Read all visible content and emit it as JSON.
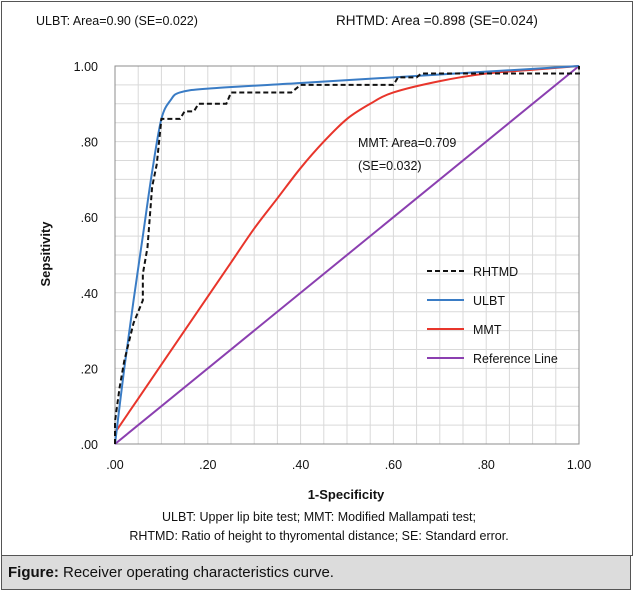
{
  "chart_data": {
    "type": "line",
    "xlabel": "1-Specificity",
    "ylabel": "Sepsitivity",
    "xlim": [
      0,
      1
    ],
    "ylim": [
      0,
      1
    ],
    "x_ticks": [
      ".00",
      ".20",
      ".40",
      ".60",
      ".80",
      "1.00"
    ],
    "y_ticks": [
      ".00",
      ".20",
      ".40",
      ".60",
      ".80",
      "1.00"
    ],
    "grid": true,
    "legend_position": "bottom-right",
    "annotations": {
      "ulbt": "ULBT: Area=0.90 (SE=0.022)",
      "rhtmd": "RHTMD: Area =0.898 (SE=0.024)",
      "mmt_line1": "MMT: Area=0.709",
      "mmt_line2": "(SE=0.032)"
    },
    "series": [
      {
        "name": "RHTMD",
        "color": "#111111",
        "dash": "dashed",
        "points": [
          [
            0,
            0
          ],
          [
            0,
            0.06
          ],
          [
            0.01,
            0.15
          ],
          [
            0.02,
            0.22
          ],
          [
            0.03,
            0.27
          ],
          [
            0.04,
            0.32
          ],
          [
            0.05,
            0.35
          ],
          [
            0.06,
            0.38
          ],
          [
            0.06,
            0.45
          ],
          [
            0.07,
            0.52
          ],
          [
            0.075,
            0.6
          ],
          [
            0.08,
            0.68
          ],
          [
            0.09,
            0.74
          ],
          [
            0.095,
            0.8
          ],
          [
            0.1,
            0.86
          ],
          [
            0.14,
            0.86
          ],
          [
            0.15,
            0.88
          ],
          [
            0.17,
            0.88
          ],
          [
            0.18,
            0.9
          ],
          [
            0.24,
            0.9
          ],
          [
            0.25,
            0.93
          ],
          [
            0.38,
            0.93
          ],
          [
            0.4,
            0.95
          ],
          [
            0.6,
            0.95
          ],
          [
            0.61,
            0.97
          ],
          [
            0.65,
            0.97
          ],
          [
            0.66,
            0.98
          ],
          [
            1,
            0.98
          ],
          [
            1,
            1
          ]
        ]
      },
      {
        "name": "ULBT",
        "color": "#3a7cc5",
        "dash": "solid",
        "points": [
          [
            0,
            0
          ],
          [
            0.02,
            0.2
          ],
          [
            0.04,
            0.38
          ],
          [
            0.06,
            0.55
          ],
          [
            0.08,
            0.72
          ],
          [
            0.1,
            0.86
          ],
          [
            0.12,
            0.91
          ],
          [
            0.14,
            0.93
          ],
          [
            0.2,
            0.94
          ],
          [
            0.4,
            0.955
          ],
          [
            0.6,
            0.97
          ],
          [
            0.8,
            0.985
          ],
          [
            1,
            1
          ]
        ]
      },
      {
        "name": "MMT",
        "color": "#e8352b",
        "dash": "solid",
        "points": [
          [
            0,
            0.03
          ],
          [
            0.05,
            0.12
          ],
          [
            0.1,
            0.21
          ],
          [
            0.15,
            0.3
          ],
          [
            0.2,
            0.39
          ],
          [
            0.25,
            0.48
          ],
          [
            0.3,
            0.57
          ],
          [
            0.35,
            0.65
          ],
          [
            0.4,
            0.73
          ],
          [
            0.45,
            0.8
          ],
          [
            0.5,
            0.86
          ],
          [
            0.55,
            0.9
          ],
          [
            0.6,
            0.93
          ],
          [
            0.7,
            0.96
          ],
          [
            0.8,
            0.98
          ],
          [
            0.9,
            0.99
          ],
          [
            1,
            1
          ]
        ]
      },
      {
        "name": "Reference Line",
        "color": "#8b3fb0",
        "dash": "solid",
        "points": [
          [
            0,
            0
          ],
          [
            1,
            1
          ]
        ]
      }
    ]
  },
  "footnote": {
    "line1": "ULBT: Upper lip bite test; MMT: Modified Mallampati test;",
    "line2": "RHTMD: Ratio of height to thyromental distance; SE: Standard error."
  },
  "caption": {
    "label": "Figure:",
    "text": " Receiver operating characteristics curve."
  }
}
